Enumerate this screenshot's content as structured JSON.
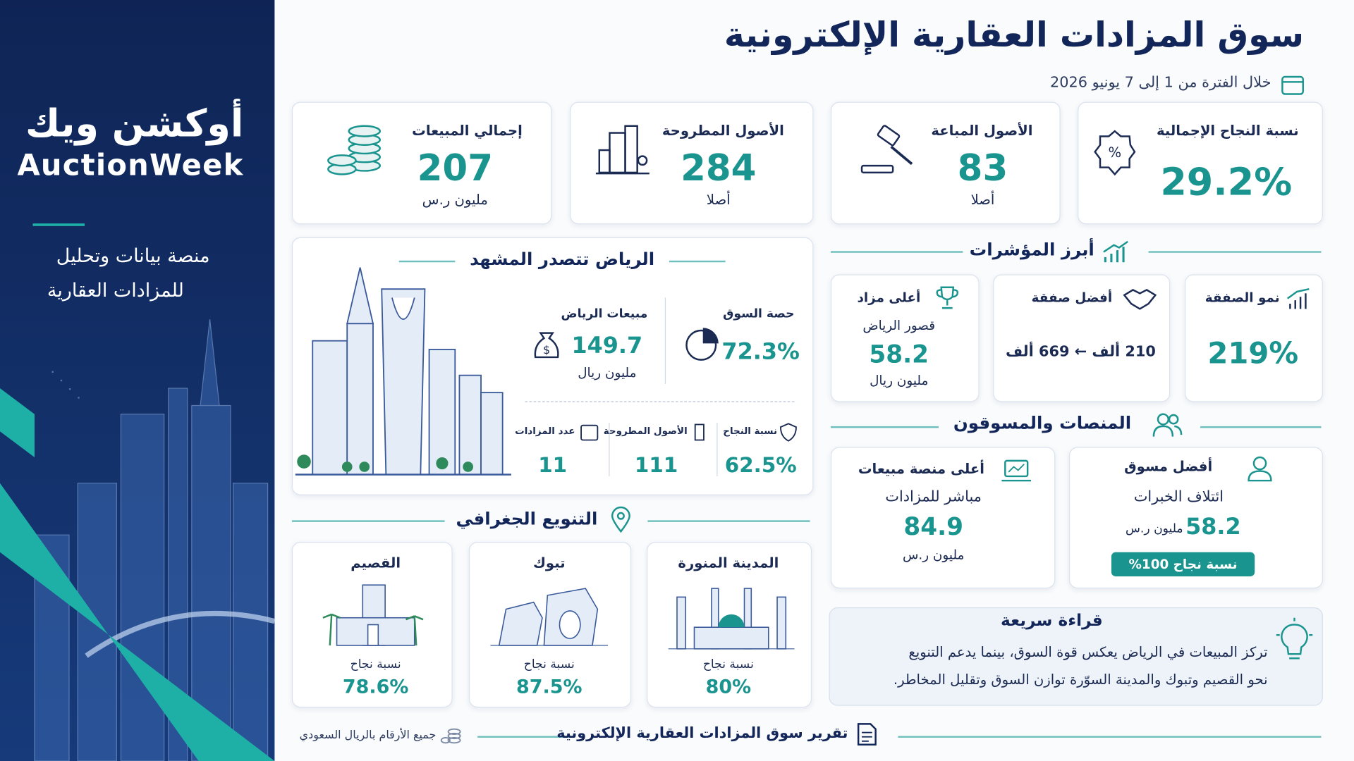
{
  "sidebar": {
    "logo_ar": "أوكشن ويك",
    "logo_en": "AuctionWeek",
    "tagline": [
      "منصة بيانات وتحليل",
      "للمزادات العقارية"
    ]
  },
  "header": {
    "title": "سوق المزادات العقارية الإلكترونية",
    "period": "خلال الفترة من 1 إلى 7 يونيو 2026"
  },
  "kpis": [
    {
      "label": "نسبة النجاح الإجمالية",
      "value": "29.2%"
    },
    {
      "label": "الأصول المباعة",
      "value": "83",
      "unit": "أصلا"
    },
    {
      "label": "الأصول المطروحة",
      "value": "284",
      "unit": "أصلا"
    },
    {
      "label": "إجمالي المبيعات",
      "value": "207",
      "unit": "مليون ر.س"
    }
  ],
  "riyadh": {
    "title": "الرياض تتصدر المشهد",
    "market_share": {
      "label": "حصة السوق",
      "value": "72.3%"
    },
    "sales": {
      "label": "مبيعات الرياض",
      "value": "149.7",
      "unit": "مليون ريال"
    },
    "success_rate": {
      "label": "نسبة النجاح",
      "value": "62.5%"
    },
    "listed_assets": {
      "label": "الأصول المطروحة",
      "value": "111"
    },
    "auctions": {
      "label": "عدد المزادات",
      "value": "11"
    }
  },
  "geography": {
    "title": "التنويع الجغرافي",
    "regions": [
      {
        "name": "المدينة المنورة",
        "label": "نسبة نجاح",
        "value": "80%"
      },
      {
        "name": "تبوك",
        "label": "نسبة نجاح",
        "value": "87.5%"
      },
      {
        "name": "القصيم",
        "label": "نسبة نجاح",
        "value": "78.6%"
      }
    ]
  },
  "indicators": {
    "title": "أبرز المؤشرات",
    "growth": {
      "label": "نمو الصفقة",
      "value": "219%"
    },
    "best_deal": {
      "label": "أفضل صفقة",
      "value": "210 ألف ← 669 ألف"
    },
    "top_auction": {
      "label": "أعلى مزاد",
      "name": "قصور الرياض",
      "value": "58.2",
      "unit": "مليون ريال"
    }
  },
  "platforms": {
    "title": "المنصات والمسوقون",
    "marketer": {
      "label": "أفضل مسوق",
      "name": "ائتلاف الخبرات",
      "value": "58.2",
      "unit": "مليون ر.س",
      "badge": "نسبة نجاح 100%"
    },
    "platform": {
      "label": "أعلى منصة مبيعات",
      "name": "مباشر للمزادات",
      "value": "84.9",
      "unit": "مليون ر.س"
    }
  },
  "quick_read": {
    "title": "قراءة سريعة",
    "lines": [
      "تركز المبيعات في الرياض يعكس قوة السوق، بينما يدعم التنويع",
      "نحو القصيم وتبوك والمدينة السوّرة توازن السوق وتقليل المخاطر."
    ]
  },
  "footer": {
    "report": "تقرير سوق المزادات العقارية الإلكترونية",
    "note": "جميع الأرقام بالريال السعودي"
  }
}
